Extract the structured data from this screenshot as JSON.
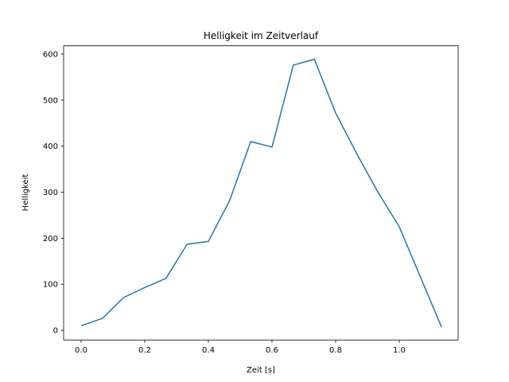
{
  "chart_data": {
    "type": "line",
    "title": "Helligkeit im Zeitverlauf",
    "xlabel": "Zeit [s]",
    "ylabel": "Helligkeit",
    "xlim": [
      -0.055,
      1.185
    ],
    "ylim": [
      -21,
      618
    ],
    "xticks": [
      0.0,
      0.2,
      0.4,
      0.6,
      0.8,
      1.0
    ],
    "xtick_labels": [
      "0.0",
      "0.2",
      "0.4",
      "0.6",
      "0.8",
      "1.0"
    ],
    "yticks": [
      0,
      100,
      200,
      300,
      400,
      500,
      600
    ],
    "ytick_labels": [
      "0",
      "100",
      "200",
      "300",
      "400",
      "500",
      "600"
    ],
    "grid": false,
    "series": [
      {
        "name": "Helligkeit",
        "color": "#1f77b4",
        "x": [
          0.0,
          0.067,
          0.133,
          0.2,
          0.267,
          0.333,
          0.4,
          0.467,
          0.533,
          0.6,
          0.667,
          0.733,
          0.8,
          0.867,
          0.933,
          1.0,
          1.067,
          1.133
        ],
        "y": [
          10,
          26,
          71,
          93,
          113,
          187,
          193,
          282,
          410,
          398,
          576,
          589,
          472,
          383,
          300,
          225,
          115,
          7
        ]
      }
    ]
  }
}
